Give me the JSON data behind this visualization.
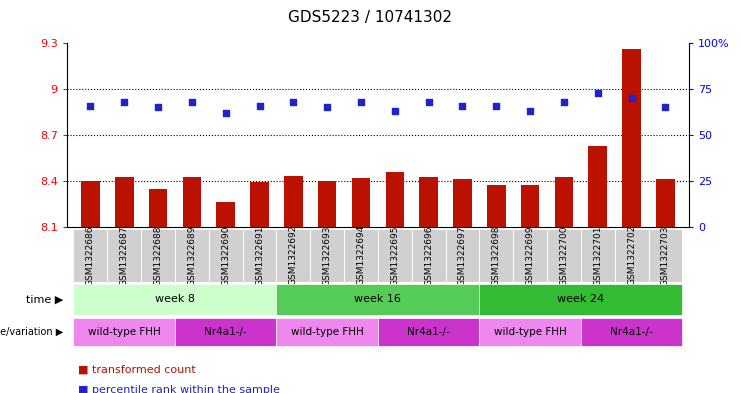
{
  "title": "GDS5223 / 10741302",
  "samples": [
    "GSM1322686",
    "GSM1322687",
    "GSM1322688",
    "GSM1322689",
    "GSM1322690",
    "GSM1322691",
    "GSM1322692",
    "GSM1322693",
    "GSM1322694",
    "GSM1322695",
    "GSM1322696",
    "GSM1322697",
    "GSM1322698",
    "GSM1322699",
    "GSM1322700",
    "GSM1322701",
    "GSM1322702",
    "GSM1322703"
  ],
  "bar_values": [
    8.4,
    8.424,
    8.35,
    8.425,
    8.265,
    8.39,
    8.435,
    8.4,
    8.416,
    8.46,
    8.425,
    8.41,
    8.373,
    8.374,
    8.428,
    8.625,
    9.265,
    8.41
  ],
  "dot_values": [
    66,
    68,
    65,
    68,
    62,
    66,
    68,
    65,
    68,
    63,
    68,
    66,
    66,
    63,
    68,
    73,
    70,
    65
  ],
  "ylim_left": [
    8.1,
    9.3
  ],
  "ylim_right": [
    0,
    100
  ],
  "yticks_left": [
    8.1,
    8.4,
    8.7,
    9.0,
    9.3
  ],
  "ytick_labels_left": [
    "8.1",
    "8.4",
    "8.7",
    "9",
    "9.3"
  ],
  "yticks_right": [
    0,
    25,
    50,
    75,
    100
  ],
  "ytick_labels_right": [
    "0",
    "25",
    "50",
    "75",
    "100%"
  ],
  "hlines": [
    8.4,
    8.7,
    9.0
  ],
  "bar_color": "#BB1100",
  "dot_color": "#2222CC",
  "bar_bottom": 8.1,
  "time_groups": [
    {
      "label": "week 8",
      "start": 0,
      "end": 5,
      "color": "#CCFFCC"
    },
    {
      "label": "week 16",
      "start": 6,
      "end": 11,
      "color": "#55CC55"
    },
    {
      "label": "week 24",
      "start": 12,
      "end": 17,
      "color": "#33BB33"
    }
  ],
  "genotype_groups": [
    {
      "label": "wild-type FHH",
      "start": 0,
      "end": 2,
      "color": "#EE88EE"
    },
    {
      "label": "Nr4a1-/-",
      "start": 3,
      "end": 5,
      "color": "#CC33CC"
    },
    {
      "label": "wild-type FHH",
      "start": 6,
      "end": 8,
      "color": "#EE88EE"
    },
    {
      "label": "Nr4a1-/-",
      "start": 9,
      "end": 11,
      "color": "#CC33CC"
    },
    {
      "label": "wild-type FHH",
      "start": 12,
      "end": 14,
      "color": "#EE88EE"
    },
    {
      "label": "Nr4a1-/-",
      "start": 15,
      "end": 17,
      "color": "#CC33CC"
    }
  ],
  "legend_items": [
    {
      "label": "transformed count",
      "color": "#BB1100"
    },
    {
      "label": "percentile rank within the sample",
      "color": "#2222CC"
    }
  ]
}
